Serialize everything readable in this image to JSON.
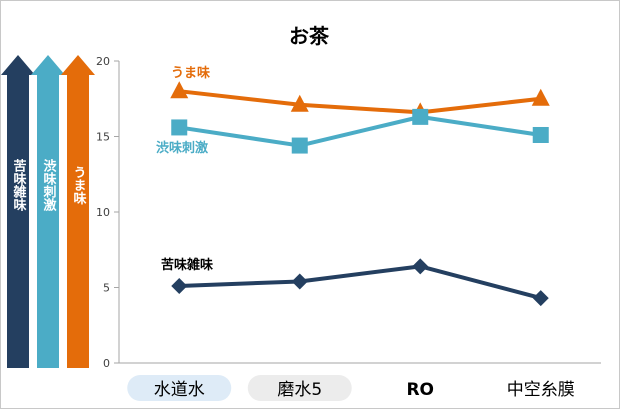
{
  "chart_data": {
    "type": "line",
    "title": "お茶",
    "categories": [
      "水道水",
      "磨水5",
      "RO",
      "中空糸膜"
    ],
    "ylim": [
      0,
      20
    ],
    "yticks": [
      0,
      5,
      10,
      15,
      20
    ],
    "grid": false,
    "series": [
      {
        "name": "うま味",
        "values": [
          18.0,
          17.1,
          16.6,
          17.5
        ],
        "color": "#e46c0a",
        "marker": "triangle"
      },
      {
        "name": "渋味刺激",
        "values": [
          15.6,
          14.4,
          16.3,
          15.1
        ],
        "color": "#4bacc6",
        "marker": "square"
      },
      {
        "name": "苦味雑味",
        "values": [
          5.1,
          5.4,
          6.4,
          4.3
        ],
        "color": "#243f60",
        "marker": "diamond"
      }
    ]
  },
  "legend_arrows": [
    {
      "label": "苦味雑味",
      "color": "#243f60"
    },
    {
      "label": "渋味刺激",
      "color": "#4bacc6"
    },
    {
      "label": "うま味",
      "color": "#e46c0a"
    }
  ]
}
